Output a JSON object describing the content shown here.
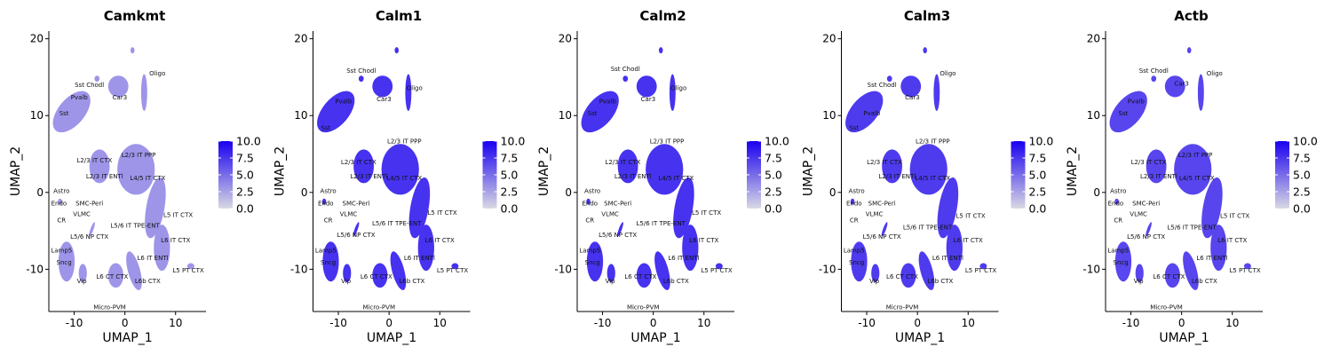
{
  "colors": {
    "low": "#d9d9e3",
    "high": "#1a00f0",
    "axis": "#000000"
  },
  "chart_data": [
    {
      "type": "scatter",
      "title": "Camkmt",
      "xlabel": "UMAP_1",
      "ylabel": "UMAP_2",
      "xlim": [
        -15,
        16
      ],
      "ylim": [
        -15.5,
        21
      ],
      "xticks": [
        -10,
        0,
        10
      ],
      "xtick_labels": [
        "-10",
        "0",
        "10"
      ],
      "yticks": [
        -10,
        0,
        10,
        20
      ],
      "ytick_labels": [
        "-10",
        "0",
        "10",
        "20"
      ],
      "legend": {
        "position": "right",
        "ticks": [
          0.0,
          2.5,
          5.0,
          7.5,
          10.0
        ],
        "tick_labels": [
          "0.0",
          "2.5",
          "5.0",
          "7.5",
          "10.0"
        ]
      },
      "expression_level": 0.35,
      "cluster_labels": [
        {
          "text": "Oligo",
          "x": 6.4,
          "y": 15.2
        },
        {
          "text": "Sst Chodl",
          "x": -7.0,
          "y": 13.7
        },
        {
          "text": "Car3",
          "x": -1.0,
          "y": 12.1
        },
        {
          "text": "Pvalb",
          "x": -9.0,
          "y": 12.1
        },
        {
          "text": "Sst",
          "x": -12.0,
          "y": 10.0
        },
        {
          "text": "L2/3 IT PPP",
          "x": 2.7,
          "y": 4.6
        },
        {
          "text": "L2/3 IT CTX",
          "x": -6.0,
          "y": 3.9
        },
        {
          "text": "L2/3 IT ENTl",
          "x": -4.0,
          "y": 1.8
        },
        {
          "text": "L4/5 IT CTX",
          "x": 4.5,
          "y": 1.6
        },
        {
          "text": "Astro",
          "x": -12.5,
          "y": -0.1
        },
        {
          "text": "Endo",
          "x": -13.0,
          "y": -1.7
        },
        {
          "text": "SMC-Peri",
          "x": -7.0,
          "y": -1.7
        },
        {
          "text": "VLMC",
          "x": -8.5,
          "y": -3.1
        },
        {
          "text": "L5 IT CTX",
          "x": 10.5,
          "y": -3.2
        },
        {
          "text": "CR",
          "x": -12.5,
          "y": -3.9
        },
        {
          "text": "L5/6 IT TPE-ENT",
          "x": 2.0,
          "y": -4.6
        },
        {
          "text": "L5/6 NP CTX",
          "x": -7.0,
          "y": -6.0
        },
        {
          "text": "L6 IT CTX",
          "x": 10.0,
          "y": -6.5
        },
        {
          "text": "Lamp5",
          "x": -12.5,
          "y": -7.8
        },
        {
          "text": "L6 IT ENTl",
          "x": 5.5,
          "y": -8.8
        },
        {
          "text": "Sncg",
          "x": -12.0,
          "y": -9.4
        },
        {
          "text": "L5 PT CTX",
          "x": 12.5,
          "y": -10.4
        },
        {
          "text": "L6 CT CTX",
          "x": -2.5,
          "y": -11.2
        },
        {
          "text": "Vip",
          "x": -8.5,
          "y": -11.8
        },
        {
          "text": "L6b CTX",
          "x": 4.5,
          "y": -11.8
        },
        {
          "text": "Micro-PVM",
          "x": -3.0,
          "y": -15.2
        }
      ]
    },
    {
      "type": "scatter",
      "title": "Calm1",
      "xlabel": "UMAP_1",
      "ylabel": "UMAP_2",
      "xlim": [
        -15,
        16
      ],
      "ylim": [
        -15.5,
        21
      ],
      "xticks": [
        -10,
        0,
        10
      ],
      "xtick_labels": [
        "-10",
        "0",
        "10"
      ],
      "yticks": [
        -10,
        0,
        10,
        20
      ],
      "ytick_labels": [
        "-10",
        "0",
        "10",
        "20"
      ],
      "legend": {
        "position": "right",
        "ticks": [
          0.0,
          2.5,
          5.0,
          7.5,
          10.0
        ],
        "tick_labels": [
          "0.0",
          "2.5",
          "5.0",
          "7.5",
          "10.0"
        ]
      },
      "expression_level": 0.85,
      "cluster_labels": [
        {
          "text": "Sst Chodl",
          "x": -5.5,
          "y": 15.6
        },
        {
          "text": "Oligo",
          "x": 5.0,
          "y": 13.3
        },
        {
          "text": "Pvalb",
          "x": -9.0,
          "y": 11.6
        },
        {
          "text": "Car3",
          "x": -1.0,
          "y": 11.9
        },
        {
          "text": "Sst",
          "x": -12.5,
          "y": 8.1
        },
        {
          "text": "L2/3 IT PPP",
          "x": 3.0,
          "y": 6.4
        },
        {
          "text": "L2/3 IT CTX",
          "x": -6.0,
          "y": 3.7
        },
        {
          "text": "L2/3 IT ENTl",
          "x": -4.0,
          "y": 1.8
        },
        {
          "text": "L4/5 IT CTX",
          "x": 3.0,
          "y": 1.6
        },
        {
          "text": "Astro",
          "x": -12.0,
          "y": -0.1
        },
        {
          "text": "Endo",
          "x": -12.5,
          "y": -1.7
        },
        {
          "text": "SMC-Peri",
          "x": -6.5,
          "y": -1.7
        },
        {
          "text": "VLMC",
          "x": -8.0,
          "y": -3.1
        },
        {
          "text": "L5 IT CTX",
          "x": 10.5,
          "y": -2.9
        },
        {
          "text": "CR",
          "x": -12.0,
          "y": -3.9
        },
        {
          "text": "L5/6 IT TPE-ENT",
          "x": 1.5,
          "y": -4.3
        },
        {
          "text": "L5/6 NP CTX",
          "x": -6.5,
          "y": -5.8
        },
        {
          "text": "L6 IT CTX",
          "x": 10.0,
          "y": -6.5
        },
        {
          "text": "Lamp5",
          "x": -12.5,
          "y": -7.8
        },
        {
          "text": "L6 IT ENTl",
          "x": 6.0,
          "y": -8.8
        },
        {
          "text": "Sncg",
          "x": -12.0,
          "y": -9.4
        },
        {
          "text": "L5 PT CTX",
          "x": 12.5,
          "y": -10.4
        },
        {
          "text": "L6 CT CTX",
          "x": -2.5,
          "y": -11.2
        },
        {
          "text": "Vip",
          "x": -8.5,
          "y": -11.8
        },
        {
          "text": "L6b CTX",
          "x": 4.5,
          "y": -11.8
        },
        {
          "text": "Micro-PVM",
          "x": -2.0,
          "y": -15.2
        }
      ]
    },
    {
      "type": "scatter",
      "title": "Calm2",
      "xlabel": "UMAP_1",
      "ylabel": "UMAP_2",
      "xlim": [
        -15,
        16
      ],
      "ylim": [
        -15.5,
        21
      ],
      "xticks": [
        -10,
        0,
        10
      ],
      "xtick_labels": [
        "-10",
        "0",
        "10"
      ],
      "yticks": [
        -10,
        0,
        10,
        20
      ],
      "ytick_labels": [
        "-10",
        "0",
        "10",
        "20"
      ],
      "legend": {
        "position": "right",
        "ticks": [
          0.0,
          2.5,
          5.0,
          7.5,
          10.0
        ],
        "tick_labels": [
          "0.0",
          "2.5",
          "5.0",
          "7.5",
          "10.0"
        ]
      },
      "expression_level": 0.85,
      "cluster_labels": [
        {
          "text": "Sst Chodl",
          "x": -5.5,
          "y": 15.8
        },
        {
          "text": "Oligo",
          "x": 5.0,
          "y": 13.3
        },
        {
          "text": "Pvalb",
          "x": -9.0,
          "y": 11.6
        },
        {
          "text": "Car3",
          "x": -1.0,
          "y": 11.9
        },
        {
          "text": "Sst",
          "x": -12.0,
          "y": 10.0
        },
        {
          "text": "L2/3 IT PPP",
          "x": 2.7,
          "y": 6.4
        },
        {
          "text": "L2/3 IT CTX",
          "x": -6.0,
          "y": 3.7
        },
        {
          "text": "L2/3 IT ENTl",
          "x": -4.0,
          "y": 1.8
        },
        {
          "text": "L4/5 IT CTX",
          "x": 4.5,
          "y": 1.6
        },
        {
          "text": "Astro",
          "x": -12.0,
          "y": -0.1
        },
        {
          "text": "Endo",
          "x": -12.5,
          "y": -1.7
        },
        {
          "text": "SMC-Peri",
          "x": -7.0,
          "y": -1.7
        },
        {
          "text": "VLMC",
          "x": -8.5,
          "y": -3.1
        },
        {
          "text": "L5 IT CTX",
          "x": 10.5,
          "y": -2.9
        },
        {
          "text": "CR",
          "x": -12.5,
          "y": -3.9
        },
        {
          "text": "L5/6 IT TPE-ENT",
          "x": 1.5,
          "y": -4.3
        },
        {
          "text": "L5/6 NP CTX",
          "x": -7.0,
          "y": -5.8
        },
        {
          "text": "L6 IT CTX",
          "x": 10.0,
          "y": -6.5
        },
        {
          "text": "Lamp5",
          "x": -12.5,
          "y": -7.8
        },
        {
          "text": "L6 IT ENTl",
          "x": 6.0,
          "y": -8.8
        },
        {
          "text": "Sncg",
          "x": -12.0,
          "y": -9.4
        },
        {
          "text": "L5 PT CTX",
          "x": 12.5,
          "y": -10.4
        },
        {
          "text": "L6 CT CTX",
          "x": -2.5,
          "y": -11.2
        },
        {
          "text": "Vip",
          "x": -8.5,
          "y": -11.8
        },
        {
          "text": "L6b CTX",
          "x": 4.5,
          "y": -11.8
        },
        {
          "text": "Micro-PVM",
          "x": -2.0,
          "y": -15.2
        }
      ]
    },
    {
      "type": "scatter",
      "title": "Calm3",
      "xlabel": "UMAP_1",
      "ylabel": "UMAP_2",
      "xlim": [
        -15,
        16
      ],
      "ylim": [
        -15.5,
        21
      ],
      "xticks": [
        -10,
        0,
        10
      ],
      "xtick_labels": [
        "-10",
        "0",
        "10"
      ],
      "yticks": [
        -10,
        0,
        10,
        20
      ],
      "ytick_labels": [
        "-10",
        "0",
        "10",
        "20"
      ],
      "legend": {
        "position": "right",
        "ticks": [
          0.0,
          2.5,
          5.0,
          7.5,
          10.0
        ],
        "tick_labels": [
          "0.0",
          "2.5",
          "5.0",
          "7.5",
          "10.0"
        ]
      },
      "expression_level": 0.8,
      "cluster_labels": [
        {
          "text": "Sst Chodl",
          "x": -7.0,
          "y": 13.7
        },
        {
          "text": "Oligo",
          "x": 6.0,
          "y": 15.2
        },
        {
          "text": "Car3",
          "x": -1.0,
          "y": 12.1
        },
        {
          "text": "Pvalb",
          "x": -9.0,
          "y": 10.0
        },
        {
          "text": "Sst",
          "x": -12.5,
          "y": 8.1
        },
        {
          "text": "L2/3 IT PPP",
          "x": 3.0,
          "y": 6.4
        },
        {
          "text": "L2/3 IT CTX",
          "x": -6.5,
          "y": 3.7
        },
        {
          "text": "L2/3 IT ENTl",
          "x": -4.0,
          "y": 1.8
        },
        {
          "text": "L4/5 IT CTX",
          "x": 3.0,
          "y": 1.6
        },
        {
          "text": "Astro",
          "x": -12.0,
          "y": -0.1
        },
        {
          "text": "Endo",
          "x": -12.5,
          "y": -1.7
        },
        {
          "text": "SMC-Peri",
          "x": -7.0,
          "y": -1.7
        },
        {
          "text": "VLMC",
          "x": -8.5,
          "y": -3.1
        },
        {
          "text": "L5 IT CTX",
          "x": 10.5,
          "y": -3.3
        },
        {
          "text": "CR",
          "x": -12.5,
          "y": -3.9
        },
        {
          "text": "L5/6 IT TPE-ENT",
          "x": 2.0,
          "y": -4.8
        },
        {
          "text": "L5/6 NP CTX",
          "x": -7.0,
          "y": -6.0
        },
        {
          "text": "L6 IT CTX",
          "x": 10.0,
          "y": -6.5
        },
        {
          "text": "Lamp5",
          "x": -12.5,
          "y": -7.8
        },
        {
          "text": "L6 IT ENTl",
          "x": 6.0,
          "y": -8.8
        },
        {
          "text": "Sncg",
          "x": -12.0,
          "y": -9.4
        },
        {
          "text": "L5 PT CTX",
          "x": 12.5,
          "y": -10.4
        },
        {
          "text": "L6 CT CTX",
          "x": -3.0,
          "y": -11.2
        },
        {
          "text": "Vip",
          "x": -8.5,
          "y": -11.8
        },
        {
          "text": "L6b CTX",
          "x": 4.5,
          "y": -11.8
        },
        {
          "text": "Micro-PVM",
          "x": -3.0,
          "y": -15.2
        }
      ]
    },
    {
      "type": "scatter",
      "title": "Actb",
      "xlabel": "UMAP_1",
      "ylabel": "UMAP_2",
      "xlim": [
        -15,
        16
      ],
      "ylim": [
        -15.5,
        21
      ],
      "xticks": [
        -10,
        0,
        10
      ],
      "xtick_labels": [
        "-10",
        "0",
        "10"
      ],
      "yticks": [
        -10,
        0,
        10,
        20
      ],
      "ytick_labels": [
        "-10",
        "0",
        "10",
        "20"
      ],
      "legend": {
        "position": "right",
        "ticks": [
          0.0,
          2.5,
          5.0,
          7.5,
          10.0
        ],
        "tick_labels": [
          "0.0",
          "2.5",
          "5.0",
          "7.5",
          "10.0"
        ]
      },
      "expression_level": 0.75,
      "cluster_labels": [
        {
          "text": "Sst Chodl",
          "x": -5.5,
          "y": 15.6
        },
        {
          "text": "Oligo",
          "x": 6.5,
          "y": 15.2
        },
        {
          "text": "Car3",
          "x": 0.0,
          "y": 13.9
        },
        {
          "text": "Pvalb",
          "x": -9.0,
          "y": 11.6
        },
        {
          "text": "Sst",
          "x": -11.5,
          "y": 10.0
        },
        {
          "text": "L2/3 IT PPP",
          "x": 2.7,
          "y": 4.6
        },
        {
          "text": "L2/3 IT CTX",
          "x": -6.5,
          "y": 3.7
        },
        {
          "text": "L2/3 IT ENTl",
          "x": -4.5,
          "y": 1.8
        },
        {
          "text": "L4/5 IT CTX",
          "x": 3.0,
          "y": 1.6
        },
        {
          "text": "Astro",
          "x": -12.5,
          "y": -0.1
        },
        {
          "text": "Endo",
          "x": -13.0,
          "y": -1.7
        },
        {
          "text": "SMC-Peri",
          "x": -7.0,
          "y": -1.7
        },
        {
          "text": "VLMC",
          "x": -8.5,
          "y": -3.1
        },
        {
          "text": "L5 IT CTX",
          "x": 10.5,
          "y": -3.3
        },
        {
          "text": "CR",
          "x": -12.5,
          "y": -3.9
        },
        {
          "text": "L5/6 IT TPE-ENT",
          "x": 2.0,
          "y": -4.8
        },
        {
          "text": "L5/6 NP CTX",
          "x": -7.0,
          "y": -6.0
        },
        {
          "text": "L6 IT CTX",
          "x": 10.0,
          "y": -6.5
        },
        {
          "text": "Lamp5",
          "x": -12.5,
          "y": -7.8
        },
        {
          "text": "L6 IT ENTl",
          "x": 6.0,
          "y": -8.8
        },
        {
          "text": "Sncg",
          "x": -12.0,
          "y": -9.4
        },
        {
          "text": "L5 PT CTX",
          "x": 12.5,
          "y": -10.4
        },
        {
          "text": "L6 CT CTX",
          "x": -2.5,
          "y": -11.2
        },
        {
          "text": "Vip",
          "x": -8.5,
          "y": -11.8
        },
        {
          "text": "L6b CTX",
          "x": 4.5,
          "y": -11.8
        },
        {
          "text": "Micro-PVM",
          "x": -3.0,
          "y": -15.2
        }
      ]
    }
  ]
}
